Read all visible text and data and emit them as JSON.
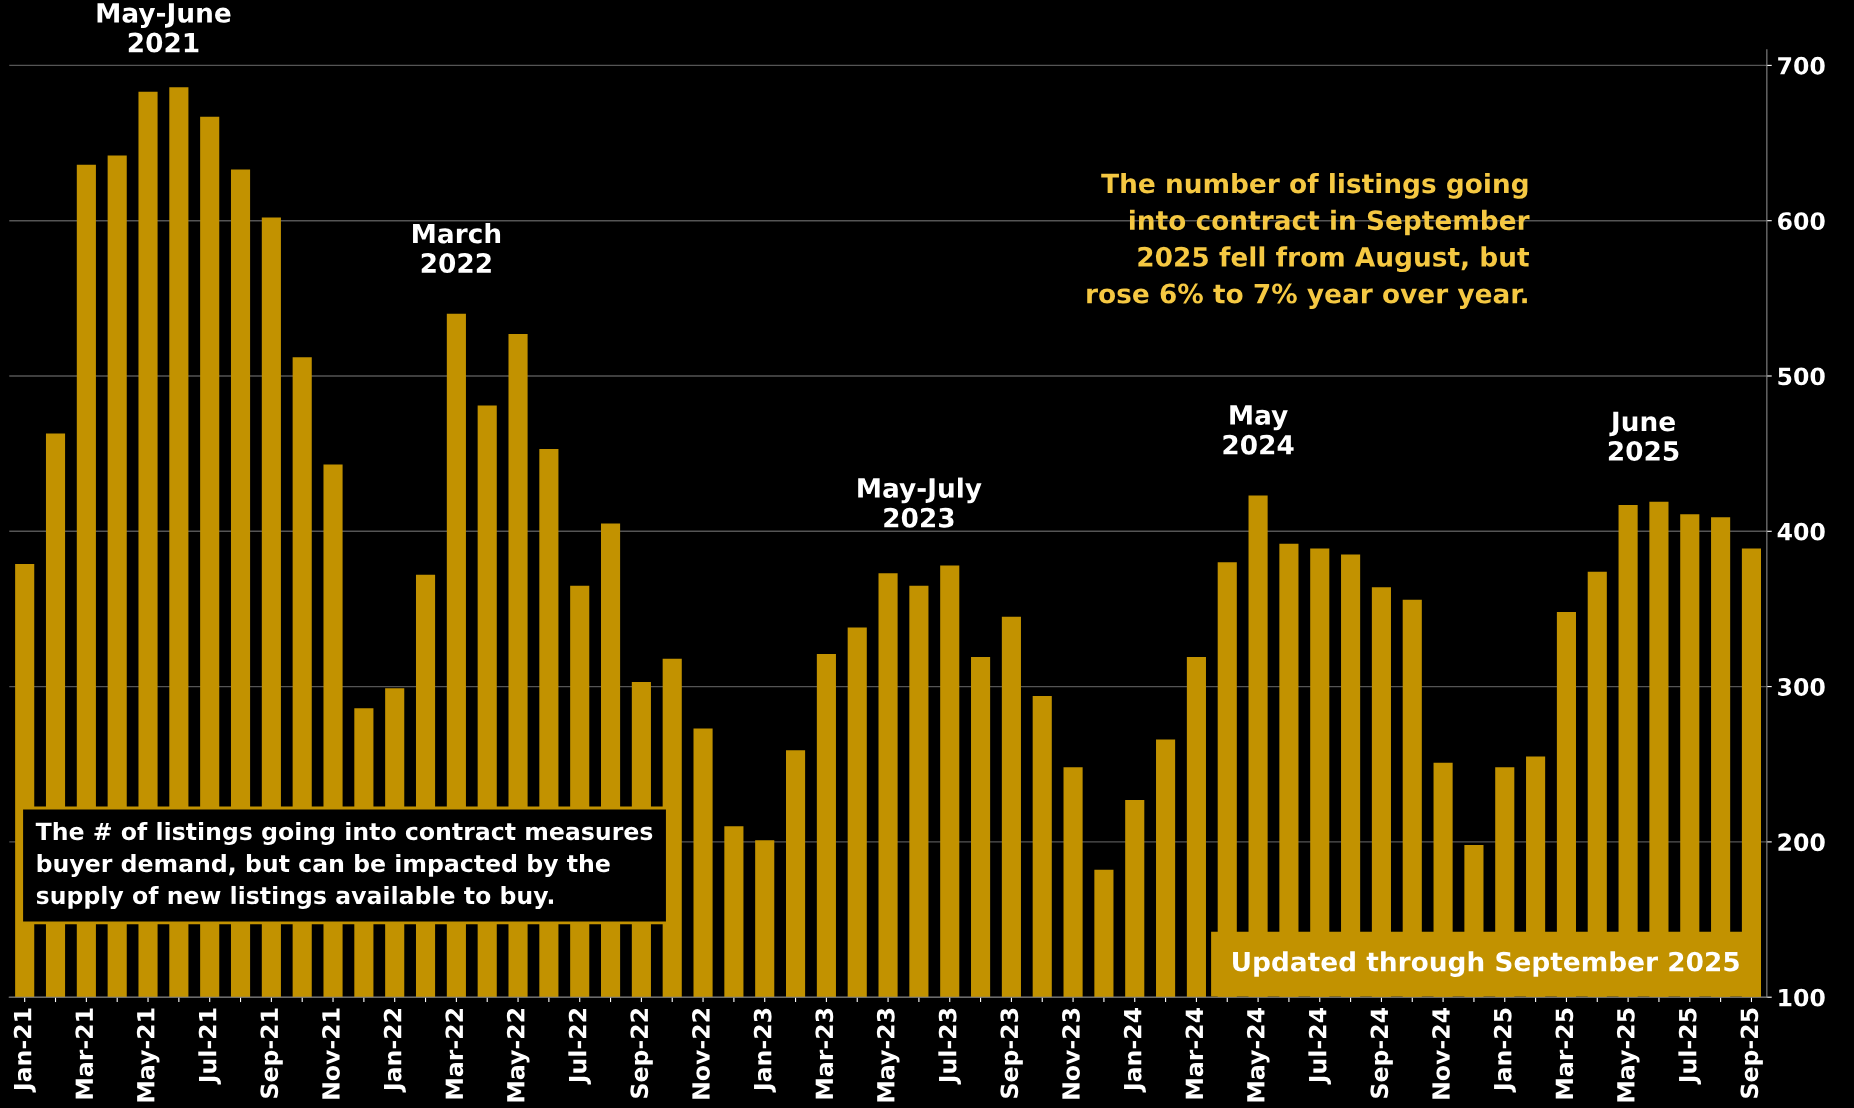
{
  "chart_data": {
    "type": "bar",
    "categories": [
      "Jan-21",
      null,
      "Mar-21",
      null,
      "May-21",
      null,
      "Jul-21",
      null,
      "Sep-21",
      null,
      "Nov-21",
      null,
      "Jan-22",
      null,
      "Mar-22",
      null,
      "May-22",
      null,
      "Jul-22",
      null,
      "Sep-22",
      null,
      "Nov-22",
      null,
      "Jan-23",
      null,
      "Mar-23",
      null,
      "May-23",
      null,
      "Jul-23",
      null,
      "Sep-23",
      null,
      "Nov-23",
      null,
      "Jan-24",
      null,
      "Mar-24",
      null,
      "May-24",
      null,
      "Jul-24",
      null,
      "Sep-24",
      null,
      "Nov-24",
      null,
      "Jan-25",
      null,
      "Mar-25",
      null,
      "May-25",
      null,
      "Jul-25",
      null,
      "Sep-25"
    ],
    "values": [
      379,
      463,
      636,
      642,
      683,
      686,
      667,
      633,
      602,
      512,
      443,
      286,
      299,
      372,
      540,
      481,
      527,
      453,
      365,
      405,
      303,
      318,
      273,
      210,
      201,
      259,
      321,
      338,
      373,
      365,
      378,
      319,
      345,
      294,
      248,
      182,
      227,
      266,
      319,
      380,
      423,
      392,
      389,
      385,
      364,
      356,
      251,
      198,
      248,
      255,
      348,
      374,
      417,
      419,
      411,
      409,
      389
    ],
    "color": "#c29200",
    "ylim": [
      100,
      710
    ],
    "yticks": [
      100,
      200,
      300,
      400,
      500,
      600,
      700
    ],
    "grid": "y",
    "annotations": [
      "May-June\n2021",
      "March\n2022",
      "May-July\n2023",
      "May\n2024",
      "June\n2025",
      "The number of listings going\ninto contract in September\n2025 fell from August, but\nrose 6% to 7% year over year.",
      "The # of listings going into contract measures\nbuyer demand, but can be impacted by the\nsupply of new listings available to buy.",
      "Updated through September 2025"
    ]
  }
}
